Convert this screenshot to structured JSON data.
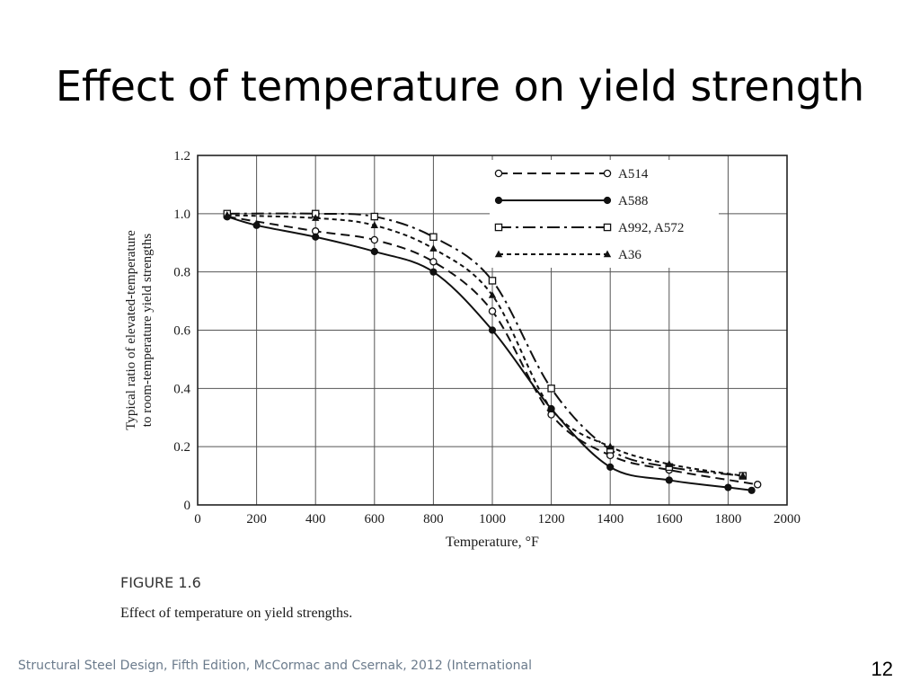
{
  "slide": {
    "title": "Effect of temperature on yield strength",
    "figure_label": "FIGURE 1.6",
    "figure_caption": "Effect of temperature on yield strengths.",
    "footer": "Structural Steel Design, Fifth Edition, McCormac and Csernak, 2012 (International",
    "page_number": "12"
  },
  "chart_data": {
    "type": "line",
    "title": "",
    "xlabel": "Temperature, °F",
    "ylabel": [
      "Typical ratio of elevated-temperature",
      "to room-temperature yield strengths"
    ],
    "xlim": [
      0,
      2000
    ],
    "ylim": [
      0,
      1.2
    ],
    "xticks": [
      0,
      200,
      400,
      600,
      800,
      1000,
      1200,
      1400,
      1600,
      1800,
      2000
    ],
    "yticks": [
      0,
      0.2,
      0.4,
      0.6,
      0.8,
      1.0,
      1.2
    ],
    "ytick_labels": [
      "0",
      "0.2",
      "0.4",
      "0.6",
      "0.8",
      "1.0",
      "1.2"
    ],
    "grid": true,
    "legend_position": "top-right",
    "series": [
      {
        "name": "A514",
        "line_style": "dashed",
        "marker": "open-circle",
        "points": [
          [
            100,
            0.99
          ],
          [
            400,
            0.94
          ],
          [
            600,
            0.91
          ],
          [
            800,
            0.835
          ],
          [
            1000,
            0.665
          ],
          [
            1200,
            0.31
          ],
          [
            1400,
            0.17
          ],
          [
            1600,
            0.12
          ],
          [
            1900,
            0.07
          ]
        ]
      },
      {
        "name": "A588",
        "line_style": "solid",
        "marker": "filled-circle",
        "points": [
          [
            100,
            0.99
          ],
          [
            200,
            0.96
          ],
          [
            400,
            0.92
          ],
          [
            600,
            0.87
          ],
          [
            800,
            0.8
          ],
          [
            1000,
            0.6
          ],
          [
            1200,
            0.33
          ],
          [
            1400,
            0.13
          ],
          [
            1600,
            0.085
          ],
          [
            1800,
            0.06
          ],
          [
            1880,
            0.05
          ]
        ]
      },
      {
        "name": "A992, A572",
        "line_style": "dash-dot",
        "marker": "open-square",
        "points": [
          [
            100,
            1.0
          ],
          [
            400,
            1.0
          ],
          [
            600,
            0.99
          ],
          [
            800,
            0.92
          ],
          [
            1000,
            0.77
          ],
          [
            1200,
            0.4
          ],
          [
            1400,
            0.19
          ],
          [
            1600,
            0.13
          ],
          [
            1850,
            0.1
          ]
        ]
      },
      {
        "name": "A36",
        "line_style": "short-dashed",
        "marker": "filled-triangle",
        "points": [
          [
            100,
            0.995
          ],
          [
            400,
            0.985
          ],
          [
            600,
            0.96
          ],
          [
            800,
            0.88
          ],
          [
            1000,
            0.72
          ],
          [
            1200,
            0.33
          ],
          [
            1400,
            0.2
          ],
          [
            1600,
            0.14
          ],
          [
            1850,
            0.1
          ]
        ]
      }
    ]
  }
}
